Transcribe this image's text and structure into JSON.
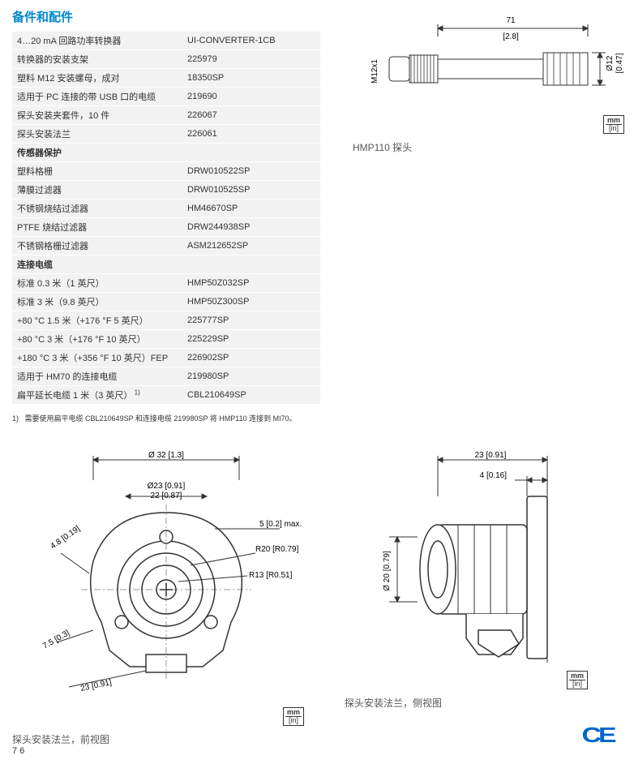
{
  "heading": "备件和配件",
  "table_rows": [
    {
      "type": "row",
      "c1": "4…20 mA 回路功率转换器",
      "c2": "UI-CONVERTER-1CB"
    },
    {
      "type": "row",
      "c1": "转换器的安装支架",
      "c2": "225979"
    },
    {
      "type": "row",
      "c1": "塑料 M12 安装螺母，成对",
      "c2": "18350SP"
    },
    {
      "type": "row",
      "c1": "适用于 PC 连接的带 USB 口的电缆",
      "c2": "219690"
    },
    {
      "type": "row",
      "c1": "探头安装夹套件，10 件",
      "c2": "226067"
    },
    {
      "type": "row",
      "c1": "探头安装法兰",
      "c2": "226061"
    },
    {
      "type": "sub",
      "c1": "传感器保护",
      "c2": ""
    },
    {
      "type": "row",
      "c1": "塑料格栅",
      "c2": "DRW010522SP"
    },
    {
      "type": "row",
      "c1": "薄膜过滤器",
      "c2": "DRW010525SP"
    },
    {
      "type": "row",
      "c1": "不锈钢烧结过滤器",
      "c2": "HM46670SP"
    },
    {
      "type": "row",
      "c1": "PTFE 烧结过滤器",
      "c2": "DRW244938SP"
    },
    {
      "type": "row",
      "c1": "不锈钢格栅过滤器",
      "c2": "ASM212652SP"
    },
    {
      "type": "sub",
      "c1": "连接电缆",
      "c2": ""
    },
    {
      "type": "row",
      "c1": "标准 0.3 米（1 英尺）",
      "c2": "HMP50Z032SP"
    },
    {
      "type": "row",
      "c1": "标准 3 米（9.8 英尺）",
      "c2": "HMP50Z300SP"
    },
    {
      "type": "row",
      "c1": "+80 °C 1.5 米（+176 °F 5 英尺）",
      "c2": "225777SP"
    },
    {
      "type": "row",
      "c1": "+80 °C 3 米（+176 °F 10 英尺）",
      "c2": "225229SP"
    },
    {
      "type": "row",
      "c1": "+180 °C 3 米（+356 °F 10 英尺）FEP",
      "c2": "226902SP"
    },
    {
      "type": "row",
      "c1": "适用于 HM70 的连接电缆",
      "c2": "219980SP"
    },
    {
      "type": "row",
      "c1": "扁平延长电缆 1 米（3 英尺）",
      "c2": "CBL210649SP",
      "sup": "1)"
    }
  ],
  "footnote_num": "1)",
  "footnote_text": "需要使用扁平电缆 CBL210649SP 和连接电缆 219980SP 将 HMP110 连接到 MI70。",
  "probe_label": "HMP110 探头",
  "flange_front_label": "探头安装法兰，前视图",
  "flange_side_label": "探头安装法兰，侧视图",
  "unit_mm": "mm",
  "unit_in": "[in]",
  "probe_dims": {
    "length": "71",
    "length_in": "[2.8]",
    "connector": "M12x1",
    "dia": "Ø12",
    "dia_in": "[0.47]"
  },
  "front_dims": {
    "outer": "Ø 32 [1.3]",
    "inner1": "Ø23 [0.91]",
    "inner2": "22 [0.87]",
    "gap": "5 [0.2] max.",
    "r1": "R20 [R0.79]",
    "r2": "R13 [R0.51]",
    "d1": "4.8 [0.19]",
    "d2": "7.5 [0.3]",
    "d3": "23 [0.91]"
  },
  "side_dims": {
    "width": "23 [0.91]",
    "thick": "4 [0.16]",
    "height": "Ø 20 [0.79]"
  },
  "ce": "CE"
}
